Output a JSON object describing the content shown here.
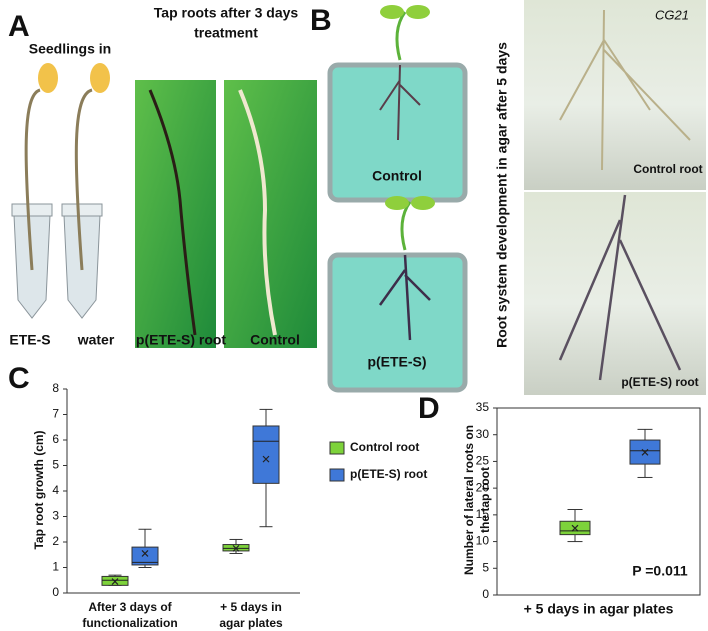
{
  "figure": {
    "panel_a": "A",
    "seedlings_in": "Seedlings in",
    "tap_roots_title": [
      "Tap roots after 3 days",
      "treatment"
    ],
    "tube_labels": [
      "ETE-S",
      "water"
    ],
    "photo_labels": [
      "p(ETE-S) root",
      "Control"
    ],
    "panel_b": "B",
    "box_labels": [
      "Control",
      "p(ETE-S)"
    ],
    "root_system_title": "Root system development in agar after 5 days",
    "agar_photo_labels": [
      "Control root",
      "p(ETE-S) root"
    ],
    "plate_tag": "CG21",
    "panel_c": "C",
    "panel_d": "D"
  },
  "chart_data": [
    {
      "type": "box",
      "y_label": "Tap root growth (cm)",
      "categories": [
        [
          "After 3 days of",
          "functionalization"
        ],
        [
          "+ 5 days in",
          "agar plates"
        ]
      ],
      "ylim": [
        0,
        8
      ],
      "yticks": [
        0,
        1,
        2,
        3,
        4,
        5,
        6,
        7,
        8
      ],
      "legend": "right",
      "series": [
        {
          "name": "Control root",
          "color": "#7dd23a",
          "stats": [
            {
              "min": 0.3,
              "q1": 0.3,
              "median": 0.5,
              "q3": 0.65,
              "max": 0.7,
              "mean": 0.45
            },
            {
              "min": 1.55,
              "q1": 1.65,
              "median": 1.75,
              "q3": 1.9,
              "max": 2.1,
              "mean": 1.75
            }
          ]
        },
        {
          "name": "p(ETE-S) root",
          "color": "#3f78d8",
          "stats": [
            {
              "min": 1.0,
              "q1": 1.1,
              "median": 1.2,
              "q3": 1.8,
              "max": 2.5,
              "mean": 1.55
            },
            {
              "min": 2.6,
              "q1": 4.3,
              "median": 5.95,
              "q3": 6.55,
              "max": 7.2,
              "mean": 5.25
            }
          ]
        }
      ]
    },
    {
      "type": "box",
      "y_label": [
        "Number of lateral roots on",
        "the tap root"
      ],
      "x_label": "+ 5 days in agar plates",
      "annotation": "P =0.011",
      "ylim": [
        0,
        35
      ],
      "yticks": [
        0,
        5,
        10,
        15,
        20,
        25,
        30,
        35
      ],
      "series": [
        {
          "color": "#7dd23a",
          "stats": [
            {
              "min": 10,
              "q1": 11.3,
              "median": 12,
              "q3": 13.8,
              "max": 16,
              "mean": 12.5
            }
          ]
        },
        {
          "color": "#3f78d8",
          "stats": [
            {
              "min": 22,
              "q1": 24.5,
              "median": 27,
              "q3": 29,
              "max": 31,
              "mean": 26.7
            }
          ]
        }
      ]
    }
  ]
}
